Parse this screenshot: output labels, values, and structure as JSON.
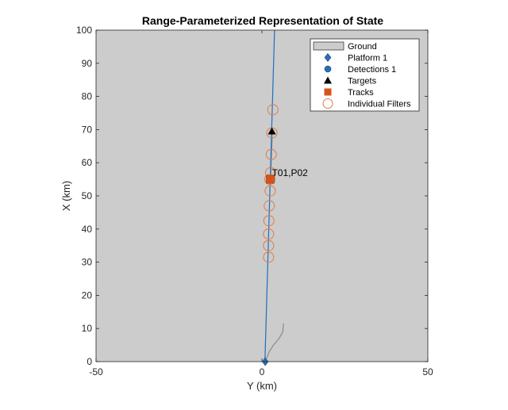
{
  "chart_data": {
    "type": "scatter",
    "title": "Range-Parameterized Representation of State",
    "xlabel": "Y (km)",
    "ylabel": "X (km)",
    "xlim": [
      -50,
      50
    ],
    "ylim": [
      0,
      100
    ],
    "xticks": [
      "-50",
      "0",
      "50"
    ],
    "yticks": [
      "0",
      "10",
      "20",
      "30",
      "40",
      "50",
      "60",
      "70",
      "80",
      "90",
      "100"
    ],
    "grid": false,
    "legend_position": "top-right",
    "legend": [
      {
        "label": "Ground",
        "marker": "patch"
      },
      {
        "label": "Platform 1",
        "marker": "diamond"
      },
      {
        "label": "Detections 1",
        "marker": "circle-filled"
      },
      {
        "label": "Targets",
        "marker": "triangle"
      },
      {
        "label": "Tracks",
        "marker": "square"
      },
      {
        "label": "Individual Filters",
        "marker": "circle-open"
      }
    ],
    "colors": {
      "ground": "#cccccc",
      "platform": "#2a6eb0",
      "detection_line": "#1f6fc0",
      "target": "#000000",
      "track": "#d95319",
      "filter": "#e07b45",
      "trail": "#8a8a8a"
    },
    "detection_line": [
      [
        0.9,
        0
      ],
      [
        3.8,
        100
      ]
    ],
    "platform": {
      "x": 1,
      "y": 0
    },
    "target": {
      "x": 3,
      "y": 69.5
    },
    "target_trail": [
      [
        6.5,
        11.5
      ],
      [
        6.3,
        9
      ],
      [
        5.2,
        7
      ],
      [
        3.5,
        5
      ],
      [
        2.2,
        3
      ],
      [
        1.4,
        1
      ]
    ],
    "track": {
      "x": 2.5,
      "y": 55,
      "label": "T01,P02"
    },
    "track_trail": [
      [
        2.6,
        55
      ],
      [
        2.8,
        60
      ],
      [
        3.0,
        65
      ],
      [
        3.1,
        69.5
      ]
    ],
    "filters": [
      {
        "x": 3.3,
        "y": 76
      },
      {
        "x": 3.0,
        "y": 69
      },
      {
        "x": 2.8,
        "y": 62.5
      },
      {
        "x": 2.6,
        "y": 57
      },
      {
        "x": 2.4,
        "y": 55
      },
      {
        "x": 2.5,
        "y": 51.5
      },
      {
        "x": 2.2,
        "y": 47
      },
      {
        "x": 2.1,
        "y": 42.5
      },
      {
        "x": 2.0,
        "y": 38.5
      },
      {
        "x": 2.0,
        "y": 35
      },
      {
        "x": 2.0,
        "y": 31.5
      }
    ]
  }
}
